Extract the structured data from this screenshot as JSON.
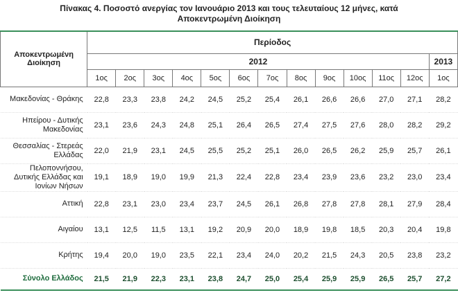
{
  "title": "Πίνακας 4. Ποσοστό ανεργίας τον Ιανουάριο 2013 και τους τελευταίους 12 μήνες, κατά Αποκεντρωμένη Διοίκηση",
  "table": {
    "region_header": "Αποκεντρωμένη Διοίκηση",
    "period_header": "Περίοδος",
    "years": [
      "2012",
      "2013"
    ],
    "months": [
      "1ος",
      "2ος",
      "3ος",
      "4ος",
      "5ος",
      "6ος",
      "7ος",
      "8ος",
      "9ος",
      "10ος",
      "11ος",
      "12ος",
      "1ος"
    ],
    "rows": [
      {
        "region": "Μακεδονίας - Θράκης",
        "values": [
          "22,8",
          "23,3",
          "23,8",
          "24,2",
          "24,5",
          "25,2",
          "25,4",
          "26,1",
          "26,6",
          "26,6",
          "27,0",
          "27,1",
          "28,2"
        ]
      },
      {
        "region": "Ηπείρου - Δυτικής Μακεδονίας",
        "values": [
          "23,1",
          "23,6",
          "24,3",
          "24,8",
          "25,1",
          "26,4",
          "26,5",
          "27,4",
          "27,5",
          "27,6",
          "28,0",
          "28,2",
          "29,2"
        ]
      },
      {
        "region": "Θεσσαλίας - Στερεάς Ελλάδας",
        "values": [
          "22,0",
          "21,9",
          "23,1",
          "24,5",
          "25,5",
          "25,2",
          "25,1",
          "26,0",
          "26,5",
          "26,2",
          "25,9",
          "25,7",
          "26,1"
        ]
      },
      {
        "region": "Πελοποννήσου, Δυτικής Ελλάδας και Ιονίων Νήσων",
        "values": [
          "19,1",
          "18,9",
          "19,0",
          "19,9",
          "21,3",
          "22,4",
          "22,8",
          "23,4",
          "23,9",
          "23,6",
          "23,2",
          "23,0",
          "23,4"
        ]
      },
      {
        "region": "Αττική",
        "values": [
          "22,8",
          "23,1",
          "23,0",
          "23,4",
          "23,7",
          "24,5",
          "26,1",
          "26,8",
          "27,8",
          "27,8",
          "28,1",
          "27,9",
          "28,4"
        ]
      },
      {
        "region": "Αιγαίου",
        "values": [
          "13,1",
          "12,5",
          "11,5",
          "13,1",
          "19,2",
          "20,9",
          "20,0",
          "18,9",
          "19,8",
          "18,5",
          "20,3",
          "20,4",
          "19,8"
        ]
      },
      {
        "region": "Κρήτης",
        "values": [
          "19,4",
          "20,0",
          "19,0",
          "23,5",
          "22,1",
          "23,4",
          "24,0",
          "20,2",
          "21,5",
          "24,3",
          "20,5",
          "23,8",
          "23,2"
        ]
      }
    ],
    "total": {
      "region": "Σύνολο Ελλάδος",
      "values": [
        "21,5",
        "21,9",
        "22,3",
        "23,1",
        "23,8",
        "24,7",
        "25,0",
        "25,4",
        "25,9",
        "25,9",
        "26,5",
        "25,7",
        "27,2"
      ]
    }
  }
}
